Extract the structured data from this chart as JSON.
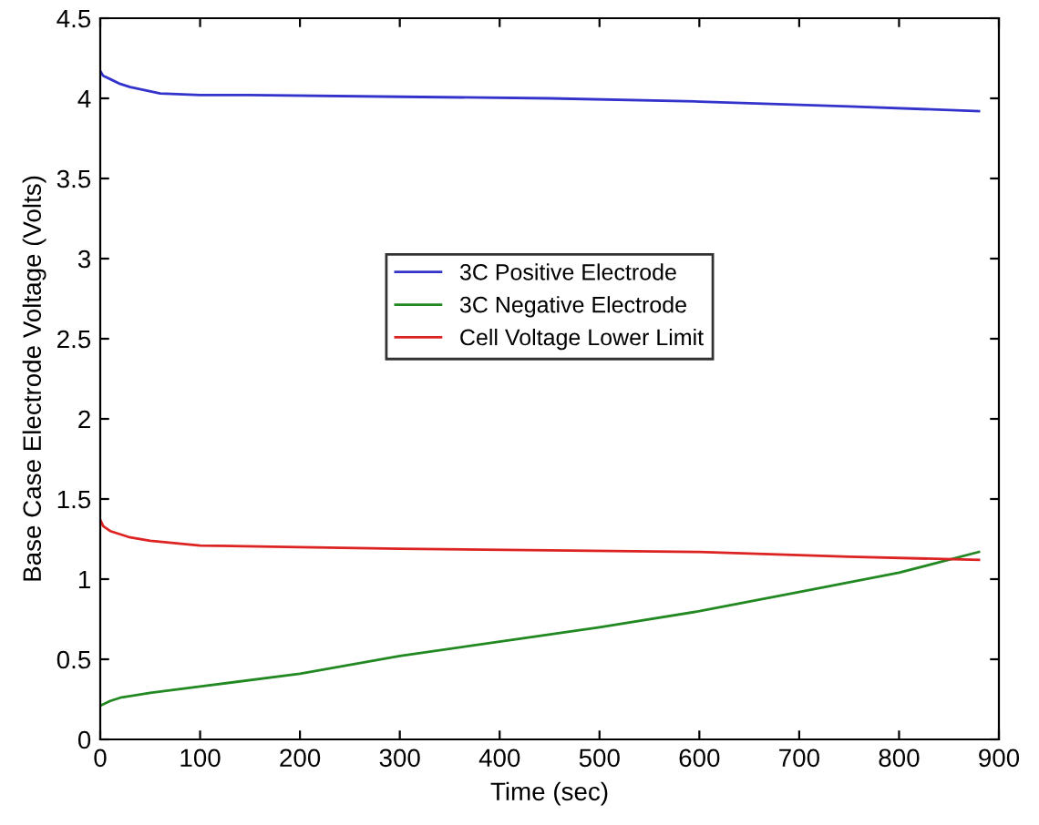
{
  "chart_data": {
    "type": "line",
    "xlabel": "Time (sec)",
    "ylabel": "Base Case Electrode Voltage (Volts)",
    "xlim": [
      0,
      900
    ],
    "ylim": [
      0,
      4.5
    ],
    "xticks": [
      0,
      100,
      200,
      300,
      400,
      500,
      600,
      700,
      800,
      900
    ],
    "yticks": [
      0,
      0.5,
      1,
      1.5,
      2,
      2.5,
      3,
      3.5,
      4,
      4.5
    ],
    "grid": false,
    "legend": "center",
    "marker": "none",
    "line_style": "solid",
    "series": [
      {
        "name": "3C Positive Electrode",
        "color": "#3333cc",
        "x": [
          0,
          3,
          10,
          20,
          30,
          45,
          60,
          100,
          150,
          300,
          450,
          600,
          750,
          880
        ],
        "values": [
          4.17,
          4.14,
          4.12,
          4.09,
          4.07,
          4.05,
          4.03,
          4.02,
          4.02,
          4.01,
          4.0,
          3.98,
          3.95,
          3.92
        ]
      },
      {
        "name": "3C Negative Electrode",
        "color": "#228822",
        "x": [
          0,
          10,
          20,
          50,
          100,
          200,
          300,
          400,
          500,
          600,
          700,
          800,
          880
        ],
        "values": [
          0.21,
          0.24,
          0.26,
          0.29,
          0.33,
          0.41,
          0.52,
          0.61,
          0.7,
          0.8,
          0.92,
          1.04,
          1.17
        ]
      },
      {
        "name": "Cell Voltage Lower Limit",
        "color": "#dd2222",
        "x": [
          0,
          3,
          10,
          20,
          30,
          50,
          100,
          200,
          300,
          450,
          600,
          750,
          880
        ],
        "values": [
          1.37,
          1.33,
          1.3,
          1.28,
          1.26,
          1.24,
          1.21,
          1.2,
          1.19,
          1.18,
          1.17,
          1.14,
          1.12
        ]
      }
    ]
  }
}
